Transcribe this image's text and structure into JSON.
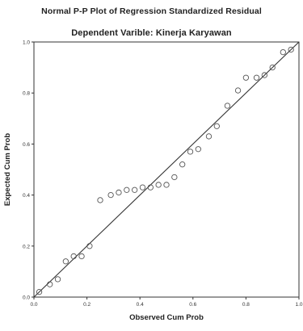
{
  "chart_data": {
    "type": "scatter",
    "title": "Normal P-P Plot of Regression Standardized Residual",
    "subtitle": "Dependent Varible: Kinerja Karyawan",
    "xlabel": "Observed Cum Prob",
    "ylabel": "Expected Cum Prob",
    "xlim": [
      0,
      1
    ],
    "ylim": [
      0,
      1
    ],
    "xticks": [
      "0.0",
      "0.2",
      "0.4",
      "0.6",
      "0.8",
      "1.0"
    ],
    "yticks": [
      "0.0",
      "0.2",
      "0.4",
      "0.6",
      "0.8",
      "1.0"
    ],
    "grid": false,
    "reference_line": [
      [
        0,
        0
      ],
      [
        1,
        1
      ]
    ],
    "colors": {
      "points": "#555555",
      "line": "#333333",
      "frame": "#333333"
    },
    "points": [
      {
        "x": 0.02,
        "y": 0.02
      },
      {
        "x": 0.06,
        "y": 0.05
      },
      {
        "x": 0.09,
        "y": 0.07
      },
      {
        "x": 0.12,
        "y": 0.14
      },
      {
        "x": 0.15,
        "y": 0.16
      },
      {
        "x": 0.18,
        "y": 0.16
      },
      {
        "x": 0.21,
        "y": 0.2
      },
      {
        "x": 0.25,
        "y": 0.38
      },
      {
        "x": 0.29,
        "y": 0.4
      },
      {
        "x": 0.32,
        "y": 0.41
      },
      {
        "x": 0.35,
        "y": 0.42
      },
      {
        "x": 0.38,
        "y": 0.42
      },
      {
        "x": 0.41,
        "y": 0.43
      },
      {
        "x": 0.44,
        "y": 0.43
      },
      {
        "x": 0.47,
        "y": 0.44
      },
      {
        "x": 0.5,
        "y": 0.44
      },
      {
        "x": 0.53,
        "y": 0.47
      },
      {
        "x": 0.56,
        "y": 0.52
      },
      {
        "x": 0.59,
        "y": 0.57
      },
      {
        "x": 0.62,
        "y": 0.58
      },
      {
        "x": 0.66,
        "y": 0.63
      },
      {
        "x": 0.69,
        "y": 0.67
      },
      {
        "x": 0.73,
        "y": 0.75
      },
      {
        "x": 0.77,
        "y": 0.81
      },
      {
        "x": 0.8,
        "y": 0.86
      },
      {
        "x": 0.84,
        "y": 0.86
      },
      {
        "x": 0.87,
        "y": 0.87
      },
      {
        "x": 0.9,
        "y": 0.9
      },
      {
        "x": 0.94,
        "y": 0.96
      },
      {
        "x": 0.97,
        "y": 0.97
      }
    ]
  }
}
